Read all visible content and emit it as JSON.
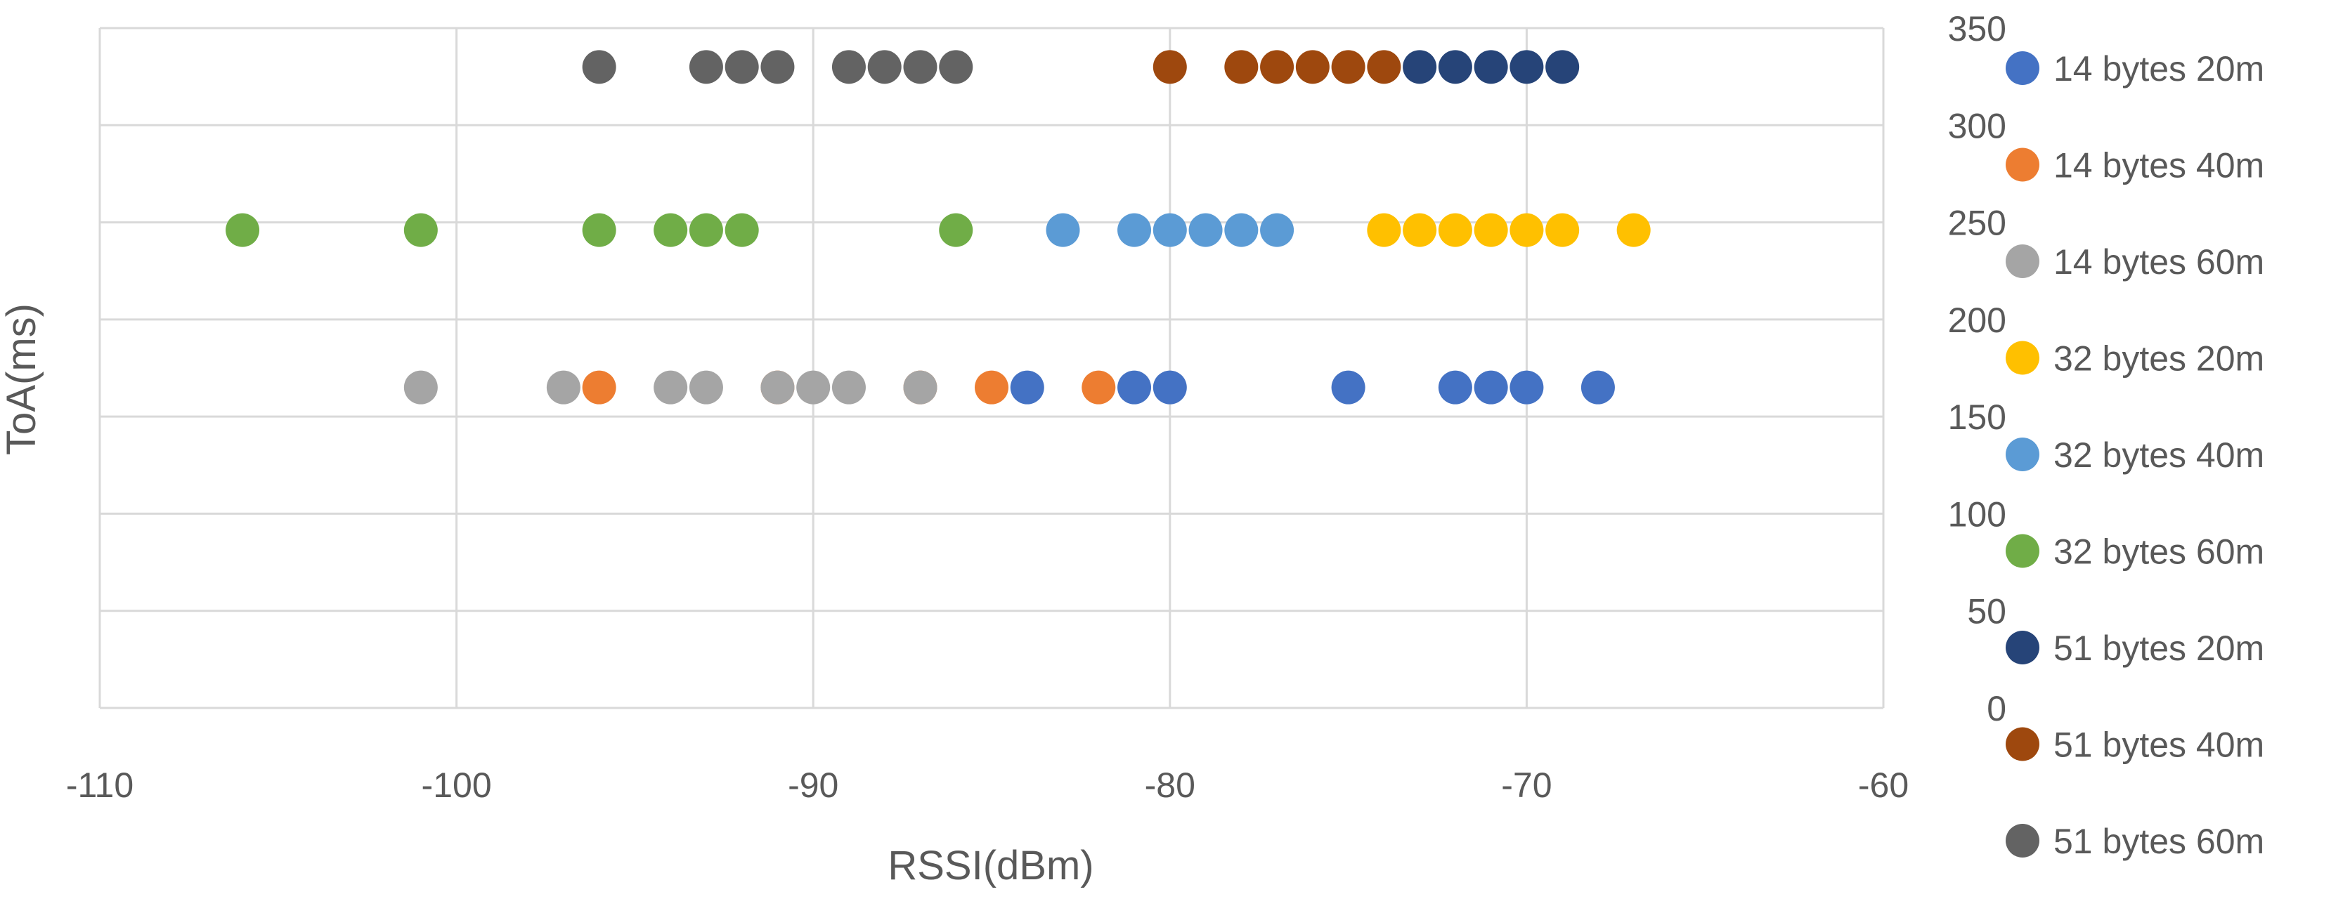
{
  "chart_data": {
    "type": "scatter",
    "xlabel": "RSSI(dBm)",
    "ylabel": "ToA(ms)",
    "xlim": [
      -110,
      -60
    ],
    "ylim": [
      0,
      350
    ],
    "x_ticks": [
      -110,
      -100,
      -90,
      -80,
      -70,
      -60
    ],
    "y_ticks": [
      0,
      50,
      100,
      150,
      200,
      250,
      300,
      350
    ],
    "y_axis_position": "right",
    "grid": true,
    "legend_position": "right",
    "series": [
      {
        "name": "14 bytes 20m",
        "color": "#4472C4",
        "x": [
          -84,
          -81,
          -80,
          -75,
          -72,
          -71,
          -70,
          -68
        ],
        "y": [
          165,
          165,
          165,
          165,
          165,
          165,
          165,
          165
        ]
      },
      {
        "name": "14 bytes 40m",
        "color": "#ED7D31",
        "x": [
          -96,
          -91,
          -87,
          -85,
          -82
        ],
        "y": [
          165,
          165,
          165,
          165,
          165
        ]
      },
      {
        "name": "14 bytes 60m",
        "color": "#A5A5A5",
        "x": [
          -101,
          -97,
          -94,
          -93,
          -91,
          -90,
          -89,
          -87
        ],
        "y": [
          165,
          165,
          165,
          165,
          165,
          165,
          165,
          165
        ]
      },
      {
        "name": "32 bytes 20m",
        "color": "#FFC000",
        "x": [
          -74,
          -73,
          -72,
          -71,
          -70,
          -69,
          -67
        ],
        "y": [
          246,
          246,
          246,
          246,
          246,
          246,
          246
        ]
      },
      {
        "name": "32 bytes 40m",
        "color": "#5B9BD5",
        "x": [
          -83,
          -81,
          -80,
          -79,
          -78,
          -77
        ],
        "y": [
          246,
          246,
          246,
          246,
          246,
          246
        ]
      },
      {
        "name": "32 bytes 60m",
        "color": "#70AD47",
        "x": [
          -106,
          -101,
          -96,
          -94,
          -93,
          -92,
          -86
        ],
        "y": [
          246,
          246,
          246,
          246,
          246,
          246,
          246
        ]
      },
      {
        "name": "51 bytes 20m",
        "color": "#264478",
        "x": [
          -73,
          -72,
          -71,
          -70,
          -69
        ],
        "y": [
          330,
          330,
          330,
          330,
          330
        ]
      },
      {
        "name": "51 bytes 40m",
        "color": "#9E480E",
        "x": [
          -80,
          -78,
          -77,
          -76,
          -75,
          -74
        ],
        "y": [
          330,
          330,
          330,
          330,
          330,
          330
        ]
      },
      {
        "name": "51 bytes 60m",
        "color": "#636363",
        "x": [
          -96,
          -93,
          -92,
          -91,
          -89,
          -88,
          -87,
          -86
        ],
        "y": [
          330,
          330,
          330,
          330,
          330,
          330,
          330,
          330
        ]
      }
    ]
  }
}
